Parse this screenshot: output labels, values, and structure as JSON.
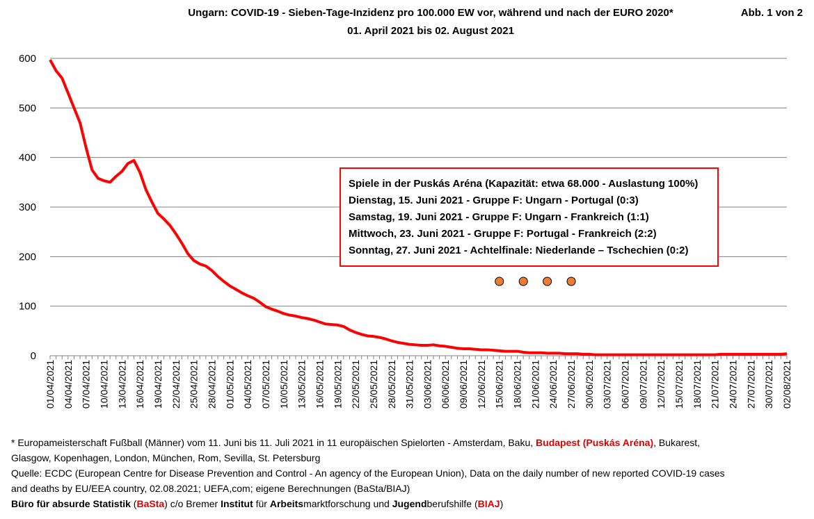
{
  "header": {
    "title": "Ungarn: COVID-19 - Sieben-Tage-Inzidenz pro 100.000 EW vor, während und nach der EURO 2020*",
    "subtitle": "01. April 2021 bis 02. August 2021",
    "figure_label": "Abb. 1 von 2"
  },
  "chart_data": {
    "type": "line",
    "title": "Ungarn: COVID-19 - Sieben-Tage-Inzidenz pro 100.000 EW vor, während und nach der EURO 2020*",
    "subtitle": "01. April 2021 bis 02. August 2021",
    "xlabel": "",
    "ylabel": "",
    "ylim": [
      0,
      600
    ],
    "yticks": [
      0,
      100,
      200,
      300,
      400,
      500,
      600
    ],
    "grid": "horizontal",
    "line_color": "#ff0000",
    "x": [
      "01/04/2021",
      "02/04/2021",
      "03/04/2021",
      "04/04/2021",
      "05/04/2021",
      "06/04/2021",
      "07/04/2021",
      "08/04/2021",
      "09/04/2021",
      "10/04/2021",
      "11/04/2021",
      "12/04/2021",
      "13/04/2021",
      "14/04/2021",
      "15/04/2021",
      "16/04/2021",
      "17/04/2021",
      "18/04/2021",
      "19/04/2021",
      "20/04/2021",
      "21/04/2021",
      "22/04/2021",
      "23/04/2021",
      "24/04/2021",
      "25/04/2021",
      "26/04/2021",
      "27/04/2021",
      "28/04/2021",
      "29/04/2021",
      "30/04/2021",
      "01/05/2021",
      "02/05/2021",
      "03/05/2021",
      "04/05/2021",
      "05/05/2021",
      "06/05/2021",
      "07/05/2021",
      "08/05/2021",
      "09/05/2021",
      "10/05/2021",
      "11/05/2021",
      "12/05/2021",
      "13/05/2021",
      "14/05/2021",
      "15/05/2021",
      "16/05/2021",
      "17/05/2021",
      "18/05/2021",
      "19/05/2021",
      "20/05/2021",
      "21/05/2021",
      "22/05/2021",
      "23/05/2021",
      "24/05/2021",
      "25/05/2021",
      "26/05/2021",
      "27/05/2021",
      "28/05/2021",
      "29/05/2021",
      "30/05/2021",
      "31/05/2021",
      "01/06/2021",
      "02/06/2021",
      "03/06/2021",
      "04/06/2021",
      "05/06/2021",
      "06/06/2021",
      "07/06/2021",
      "08/06/2021",
      "09/06/2021",
      "10/06/2021",
      "11/06/2021",
      "12/06/2021",
      "13/06/2021",
      "14/06/2021",
      "15/06/2021",
      "16/06/2021",
      "17/06/2021",
      "18/06/2021",
      "19/06/2021",
      "20/06/2021",
      "21/06/2021",
      "22/06/2021",
      "23/06/2021",
      "24/06/2021",
      "25/06/2021",
      "26/06/2021",
      "27/06/2021",
      "28/06/2021",
      "29/06/2021",
      "30/06/2021",
      "01/07/2021",
      "02/07/2021",
      "03/07/2021",
      "04/07/2021",
      "05/07/2021",
      "06/07/2021",
      "07/07/2021",
      "08/07/2021",
      "09/07/2021",
      "10/07/2021",
      "11/07/2021",
      "12/07/2021",
      "13/07/2021",
      "14/07/2021",
      "15/07/2021",
      "16/07/2021",
      "17/07/2021",
      "18/07/2021",
      "19/07/2021",
      "20/07/2021",
      "21/07/2021",
      "22/07/2021",
      "23/07/2021",
      "24/07/2021",
      "25/07/2021",
      "26/07/2021",
      "27/07/2021",
      "28/07/2021",
      "29/07/2021",
      "30/07/2021",
      "31/07/2021",
      "01/08/2021",
      "02/08/2021"
    ],
    "x_tick_labels": [
      "01/04/2021",
      "04/04/2021",
      "07/04/2021",
      "10/04/2021",
      "13/04/2021",
      "16/04/2021",
      "19/04/2021",
      "22/04/2021",
      "25/04/2021",
      "28/04/2021",
      "01/05/2021",
      "04/05/2021",
      "07/05/2021",
      "10/05/2021",
      "13/05/2021",
      "16/05/2021",
      "19/05/2021",
      "22/05/2021",
      "25/05/2021",
      "28/05/2021",
      "31/05/2021",
      "03/06/2021",
      "06/06/2021",
      "09/06/2021",
      "12/06/2021",
      "15/06/2021",
      "18/06/2021",
      "21/06/2021",
      "24/06/2021",
      "27/06/2021",
      "30/06/2021",
      "03/07/2021",
      "06/07/2021",
      "09/07/2021",
      "12/07/2021",
      "15/07/2021",
      "18/07/2021",
      "21/07/2021",
      "24/07/2021",
      "27/07/2021",
      "30/07/2021",
      "02/08/2021"
    ],
    "series": [
      {
        "values": [
          597,
          575,
          560,
          530,
          500,
          470,
          420,
          375,
          358,
          353,
          350,
          362,
          372,
          388,
          394,
          370,
          335,
          310,
          287,
          276,
          263,
          246,
          227,
          206,
          192,
          185,
          181,
          172,
          160,
          150,
          141,
          134,
          127,
          121,
          116,
          108,
          99,
          94,
          90,
          85,
          82,
          80,
          77,
          75,
          72,
          68,
          64,
          63,
          62,
          59,
          52,
          47,
          43,
          40,
          39,
          37,
          34,
          30,
          27,
          25,
          23,
          22,
          21,
          21,
          22,
          20,
          19,
          17,
          15,
          14,
          14,
          13,
          12,
          12,
          11,
          10,
          9,
          9,
          9,
          7,
          6,
          6,
          6,
          5,
          5,
          5,
          4,
          4,
          4,
          3,
          3,
          2,
          2,
          2,
          2,
          2,
          2,
          2,
          2,
          2,
          2,
          2,
          2,
          2,
          2,
          2,
          2,
          2,
          2,
          2,
          2,
          2,
          3,
          3,
          3,
          3,
          3,
          3,
          3,
          3,
          3,
          3,
          3,
          4
        ]
      }
    ],
    "markers": {
      "type": "scatter",
      "color": "#ed7d31",
      "x": [
        "15/06/2021",
        "19/06/2021",
        "23/06/2021",
        "27/06/2021"
      ],
      "y": [
        150,
        150,
        150,
        150
      ]
    },
    "legend": "none"
  },
  "annotation": {
    "border_color": "#ff0000",
    "lines": [
      "Spiele in der Puskás Aréna (Kapazität: etwa 68.000 - Auslastung 100%)",
      "Dienstag, 15. Juni 2021 - Gruppe F: Ungarn - Portugal (0:3)",
      "Samstag, 19. Juni 2021 - Gruppe F: Ungarn - Frankreich (1:1)",
      "Mittwoch, 23. Juni 2021 - Gruppe F: Portugal - Frankreich (2:2)",
      "Sonntag, 27. Juni 2021 - Achtelfinale: Niederlande – Tschechien (0:2)"
    ]
  },
  "footnotes": {
    "note1_a": "* Europameisterschaft Fußball (Männer) vom 11. Juni bis 11. Juli 2021 in 11  europäischen Spielorten - Amsterdam, Baku, ",
    "note1_highlight": "Budapest (Puskás Aréna)",
    "note1_b": ", Bukarest,",
    "note2": "Glasgow, Kopenhagen, London, München, Rom, Sevilla, St. Petersburg",
    "source1": "Quelle: ECDC (European Centre for Disease Prevention and Control - An agency of the European Union), Data on the daily number of new reported COVID-19 cases",
    "source2": "and deaths by EU/EEA country, 02.08.2021; UEFA,com; eigene Berechnungen (BaSta/BIAJ)",
    "credit": {
      "p1": "Büro für absurde Statistik",
      "p2": " (",
      "p3": "BaSta",
      "p4": ") c/o Bremer ",
      "p5": "Institut",
      "p6": " für ",
      "p7": "Arbeits",
      "p8": "marktforschung und ",
      "p9": "Jugend",
      "p10": "berufshilfe (",
      "p11": "BIAJ",
      "p12": ")"
    }
  }
}
